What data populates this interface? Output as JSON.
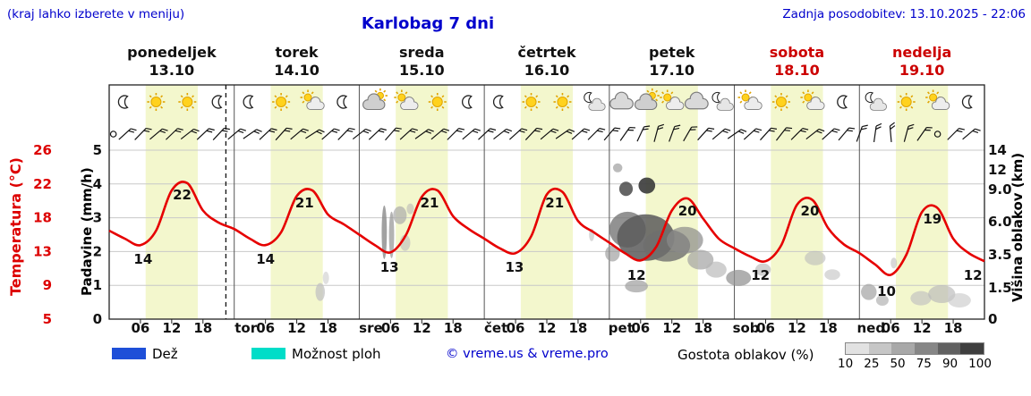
{
  "header": {
    "hint": "(kraj lahko izberete v meniju)",
    "title": "Karlobag 7 dni",
    "updated": "Zadnja posodobitev: 13.10.2025 - 22:06"
  },
  "days": [
    {
      "name": "ponedeljek",
      "date": "13.10",
      "weekend": false
    },
    {
      "name": "torek",
      "date": "14.10",
      "weekend": false
    },
    {
      "name": "sreda",
      "date": "15.10",
      "weekend": false
    },
    {
      "name": "četrtek",
      "date": "16.10",
      "weekend": false
    },
    {
      "name": "petek",
      "date": "17.10",
      "weekend": false
    },
    {
      "name": "sobota",
      "date": "18.10",
      "weekend": true
    },
    {
      "name": "nedelja",
      "date": "19.10",
      "weekend": true
    }
  ],
  "axes": {
    "temp_label": "Temperatura (°C)",
    "temp_ticks": [
      "26",
      "22",
      "18",
      "13",
      "9",
      "5"
    ],
    "precip_label": "Padavine (mm/h)",
    "precip_ticks": [
      "5",
      "4",
      "3",
      "2",
      "1",
      "0"
    ],
    "cloud_label": "Višina oblakov (km)",
    "cloud_ticks": [
      {
        "label": "14",
        "km": 14
      },
      {
        "label": "12",
        "km": 12
      },
      {
        "label": "9.0",
        "km": 9
      },
      {
        "label": "6.0",
        "km": 6
      },
      {
        "label": "3.5",
        "km": 3.5
      },
      {
        "label": "1.5",
        "km": 1.5
      },
      {
        "label": "0",
        "km": 0
      }
    ]
  },
  "xaxis": {
    "hour_labels": [
      "06",
      "12",
      "18"
    ],
    "day_abbrs": [
      "tor",
      "sre",
      "čet",
      "pet",
      "sob",
      "ned"
    ]
  },
  "legend": {
    "rain": "Dež",
    "rain_color": "#1e4fd8",
    "showers": "Možnost ploh",
    "shower_color": "#00ddc8",
    "copyright": "© vreme.us & vreme.pro",
    "cloud_density": "Gostota oblakov (%)",
    "density_levels": [
      "10",
      "25",
      "50",
      "75",
      "90",
      "100"
    ],
    "density_colors": [
      "#e2e2e2",
      "#c6c6c6",
      "#a8a8a8",
      "#868686",
      "#606060",
      "#3e3e3e"
    ]
  },
  "colors": {
    "daylight_band": "#f3f7cd",
    "temperature_curve": "#e60000",
    "weekend_red": "#cc0000",
    "header_blue": "#0000cc",
    "grid": "#c8c8c8",
    "frame": "#222222"
  },
  "chart_data": {
    "type": "line",
    "title": "Karlobag 7 dni",
    "x_unit": "hour",
    "x_range_hours": [
      0,
      168
    ],
    "x_step_hours": 3,
    "temp_axis_range_c": [
      5,
      26
    ],
    "precip_axis_range_mmh": [
      0,
      5
    ],
    "cloud_height_ticks_km": [
      0,
      1.5,
      3.5,
      6,
      9,
      12,
      14
    ],
    "temperature_c": [
      16,
      15,
      14.2,
      16,
      21,
      21.9,
      18.5,
      17,
      16.2,
      15,
      14.2,
      15.8,
      20.3,
      21,
      18,
      16.8,
      15.5,
      14.2,
      13.3,
      15.5,
      20.2,
      21,
      17.8,
      16.2,
      15,
      13.8,
      13.2,
      15.3,
      20.5,
      20.8,
      17.2,
      15.8,
      14.5,
      13.2,
      12.3,
      14,
      18.5,
      20,
      17.5,
      15,
      13.8,
      12.8,
      12.2,
      14.2,
      19.2,
      19.8,
      16.3,
      14.3,
      13.2,
      11.8,
      10.5,
      13,
      18.3,
      18.8,
      15,
      13.2,
      12.2
    ],
    "temp_point_labels": [
      [
        6.5,
        14
      ],
      [
        14,
        22
      ],
      [
        30,
        14
      ],
      [
        37.5,
        21
      ],
      [
        53.8,
        13
      ],
      [
        61.5,
        21
      ],
      [
        77.8,
        13
      ],
      [
        85.5,
        21
      ],
      [
        101.2,
        12
      ],
      [
        111,
        20
      ],
      [
        125,
        12
      ],
      [
        134.5,
        20
      ],
      [
        149.2,
        10
      ],
      [
        158,
        19
      ],
      [
        165.8,
        12
      ]
    ],
    "daylight_band_hours": [
      7,
      17
    ],
    "now_line_hour": 22.4,
    "weather_icons_per_day": [
      [
        "moon",
        "sun",
        "sun",
        "moon"
      ],
      [
        "moon",
        "sun",
        "sun-cloud",
        "moon"
      ],
      [
        "cloud-sun",
        "sun-cloud",
        "sun",
        "moon"
      ],
      [
        "moon",
        "sun",
        "sun",
        "moon-cloud"
      ],
      [
        "cloud",
        "cloud-sun",
        "sun-cloud",
        "cloud",
        "moon-cloud"
      ],
      [
        "sun-cloud",
        "sun",
        "sun-cloud",
        "moon"
      ],
      [
        "moon-cloud",
        "sun",
        "sun-cloud",
        "moon"
      ]
    ],
    "wind_barb_angles_deg": [
      null,
      48,
      44,
      50,
      46,
      52,
      47,
      43,
      50,
      55,
      47,
      42,
      50,
      57,
      49,
      44,
      52,
      47,
      41,
      48,
      54,
      50,
      45,
      50,
      47,
      52,
      48,
      43,
      50,
      55,
      49,
      45,
      40,
      35,
      25,
      15,
      20,
      30,
      42,
      50,
      55,
      48,
      42,
      38,
      45,
      52,
      48,
      40,
      20,
      8,
      -5,
      15,
      35,
      null,
      45,
      50
    ],
    "cloud_blobs": [
      [
        40.5,
        1.3,
        0.9,
        10,
        "#c2c2c2",
        0.75
      ],
      [
        41.6,
        2.1,
        0.6,
        7,
        "#cccccc",
        0.6
      ],
      [
        52.8,
        5.2,
        0.5,
        30,
        "#8a8a8a",
        0.8
      ],
      [
        54.2,
        5.0,
        0.5,
        26,
        "#9a9a9a",
        0.75
      ],
      [
        55.8,
        6.6,
        1.3,
        10,
        "#ababab",
        0.7
      ],
      [
        56.8,
        4.4,
        1.0,
        9,
        "#bdbdbd",
        0.6
      ],
      [
        57.8,
        7.2,
        0.7,
        6,
        "#b5b5b5",
        0.55
      ],
      [
        92.6,
        5.0,
        0.5,
        7,
        "#b0b0b0",
        0.5
      ],
      [
        96.6,
        3.6,
        1.4,
        9,
        "#9a9a9a",
        0.65
      ],
      [
        99.5,
        5.4,
        3.5,
        20,
        "#777777",
        0.8
      ],
      [
        103,
        4.8,
        5.5,
        26,
        "#5a5a5a",
        0.85
      ],
      [
        107,
        4.2,
        4.5,
        18,
        "#6e6e6e",
        0.8
      ],
      [
        110.5,
        4.6,
        3.5,
        15,
        "#8a8a8a",
        0.7
      ],
      [
        113.5,
        3.2,
        2.5,
        11,
        "#a2a2a2",
        0.7
      ],
      [
        116.5,
        2.6,
        2.0,
        9,
        "#b5b5b5",
        0.65
      ],
      [
        99.2,
        9.1,
        1.3,
        8,
        "#4a4a4a",
        0.85
      ],
      [
        103.2,
        9.6,
        1.6,
        9,
        "#3a3a3a",
        0.9
      ],
      [
        97.6,
        12.2,
        0.9,
        5,
        "#8e8e8e",
        0.6
      ],
      [
        101.2,
        1.6,
        2.2,
        7,
        "#9e9e9e",
        0.7
      ],
      [
        120.8,
        2.1,
        2.4,
        9,
        "#949494",
        0.75
      ],
      [
        125.5,
        2.6,
        1.5,
        7,
        "#b2b2b2",
        0.6
      ],
      [
        135.5,
        3.3,
        2.0,
        8,
        "#bababa",
        0.6
      ],
      [
        138.8,
        2.3,
        1.5,
        6,
        "#c2c2c2",
        0.6
      ],
      [
        145.8,
        1.3,
        1.5,
        9,
        "#a2a2a2",
        0.7
      ],
      [
        148.4,
        0.9,
        1.2,
        6,
        "#b2b2b2",
        0.7
      ],
      [
        150.6,
        3.0,
        0.6,
        6,
        "#b2b2b2",
        0.5
      ],
      [
        155.8,
        1.0,
        2.0,
        8,
        "#c0c0c0",
        0.65
      ],
      [
        159.8,
        1.2,
        2.6,
        10,
        "#b8b8b8",
        0.65
      ],
      [
        163.2,
        0.9,
        2.2,
        8,
        "#c6c6c6",
        0.6
      ]
    ]
  }
}
